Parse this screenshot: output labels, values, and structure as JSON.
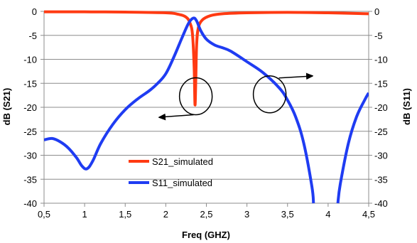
{
  "chart_data": {
    "type": "line",
    "title": "",
    "xlabel": "Freq (GHZ)",
    "ylabel_left": "dB (S21)",
    "ylabel_right": "dB (S11)",
    "xlim": [
      0.5,
      4.5
    ],
    "ylim": [
      -40,
      0
    ],
    "x_ticks": [
      "0,5",
      "1",
      "1,5",
      "2",
      "2,5",
      "3",
      "3,5",
      "4",
      "4,5"
    ],
    "y_ticks": [
      "0",
      "-5",
      "-10",
      "-15",
      "-20",
      "-25",
      "-30",
      "-35",
      "-40"
    ],
    "grid": "horizontal",
    "legend_position": "center-left",
    "series": [
      {
        "name": "S21_simulated",
        "color": "#ff3a12",
        "axis": "left",
        "x": [
          0.5,
          1.0,
          1.5,
          2.0,
          2.15,
          2.25,
          2.3,
          2.33,
          2.35,
          2.36,
          2.37,
          2.38,
          2.4,
          2.45,
          2.55,
          2.7,
          3.0,
          3.5,
          4.0,
          4.5
        ],
        "y": [
          -0.1,
          -0.1,
          -0.15,
          -0.3,
          -0.6,
          -1.2,
          -2.5,
          -5,
          -12,
          -19.5,
          -14,
          -7,
          -3.5,
          -1.8,
          -0.9,
          -0.5,
          -0.3,
          -0.2,
          -0.3,
          -0.5
        ]
      },
      {
        "name": "S11_simulated",
        "color": "#1f3cf2",
        "axis": "right",
        "x": [
          0.5,
          0.6,
          0.7,
          0.8,
          0.9,
          0.97,
          1.03,
          1.1,
          1.2,
          1.35,
          1.5,
          1.65,
          1.8,
          1.9,
          2.0,
          2.1,
          2.2,
          2.28,
          2.34,
          2.38,
          2.43,
          2.5,
          2.6,
          2.7,
          2.8,
          3.0,
          3.2,
          3.4,
          3.5,
          3.6,
          3.7,
          3.8,
          3.82,
          4.12,
          4.15,
          4.25,
          4.35,
          4.45,
          4.5
        ],
        "y": [
          -26.8,
          -26.5,
          -27.2,
          -28.5,
          -30.5,
          -32.3,
          -32.8,
          -31.2,
          -27.5,
          -23.5,
          -20.5,
          -18.3,
          -16.5,
          -15.0,
          -13.0,
          -9.5,
          -5.5,
          -2.5,
          -1.4,
          -2.0,
          -4.0,
          -5.8,
          -7.0,
          -7.6,
          -8.3,
          -10.5,
          -12.8,
          -16.0,
          -18.5,
          -22.0,
          -27.5,
          -36.5,
          -40.0,
          -40.0,
          -36.0,
          -27.5,
          -22.0,
          -18.5,
          -17.0
        ]
      }
    ],
    "annotations": [
      {
        "type": "circle",
        "label": "S21 marker",
        "x": 2.37,
        "y": -17.7,
        "arrow": "left"
      },
      {
        "type": "circle",
        "label": "S11 marker",
        "x": 3.28,
        "y": -17.3,
        "arrow": "right"
      }
    ]
  }
}
